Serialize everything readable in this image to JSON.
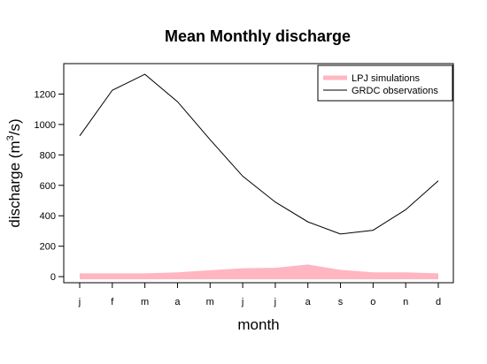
{
  "chart_data": {
    "type": "line",
    "title": "Mean Monthly discharge",
    "xlabel": "month",
    "ylabel_main": "discharge (m",
    "ylabel_sup": "3",
    "ylabel_tail": "/s)",
    "categories": [
      "j",
      "f",
      "m",
      "a",
      "m",
      "j",
      "j",
      "a",
      "s",
      "o",
      "n",
      "d"
    ],
    "yticks": [
      0,
      200,
      400,
      600,
      800,
      1000,
      1200
    ],
    "ylim": [
      -40,
      1400
    ],
    "series": [
      {
        "name": "LPJ simulations",
        "kind": "area",
        "color": "#ffb6c1",
        "values": [
          22,
          22,
          22,
          28,
          42,
          55,
          58,
          80,
          45,
          28,
          28,
          22
        ]
      },
      {
        "name": "GRDC observations",
        "kind": "line",
        "color": "#000000",
        "values": [
          925,
          1225,
          1330,
          1150,
          900,
          660,
          490,
          360,
          280,
          305,
          440,
          630
        ]
      }
    ],
    "legend_position": "top-right",
    "grid": false
  }
}
